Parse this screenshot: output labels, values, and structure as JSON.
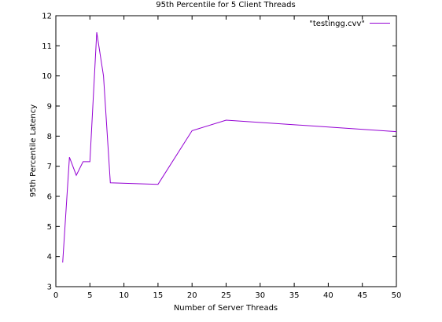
{
  "chart_data": {
    "type": "line",
    "title": "95th Percentile for 5 Client Threads",
    "xlabel": "Number of Server Threads",
    "ylabel": "95th Percentile Latency",
    "xlim": [
      0,
      50
    ],
    "ylim": [
      3,
      12
    ],
    "xticks": [
      0,
      5,
      10,
      15,
      20,
      25,
      30,
      35,
      40,
      45,
      50
    ],
    "yticks": [
      3,
      4,
      5,
      6,
      7,
      8,
      9,
      10,
      11,
      12
    ],
    "grid": false,
    "legend_position": "top-right",
    "series": [
      {
        "name": "\"testingg.cvv\"",
        "color": "#9400d3",
        "x": [
          1,
          2,
          3,
          4,
          5,
          6,
          7,
          8,
          15,
          20,
          25,
          50
        ],
        "y": [
          3.8,
          7.3,
          6.7,
          7.15,
          7.15,
          11.45,
          10.0,
          6.45,
          6.4,
          8.18,
          8.53,
          8.15
        ]
      }
    ]
  }
}
